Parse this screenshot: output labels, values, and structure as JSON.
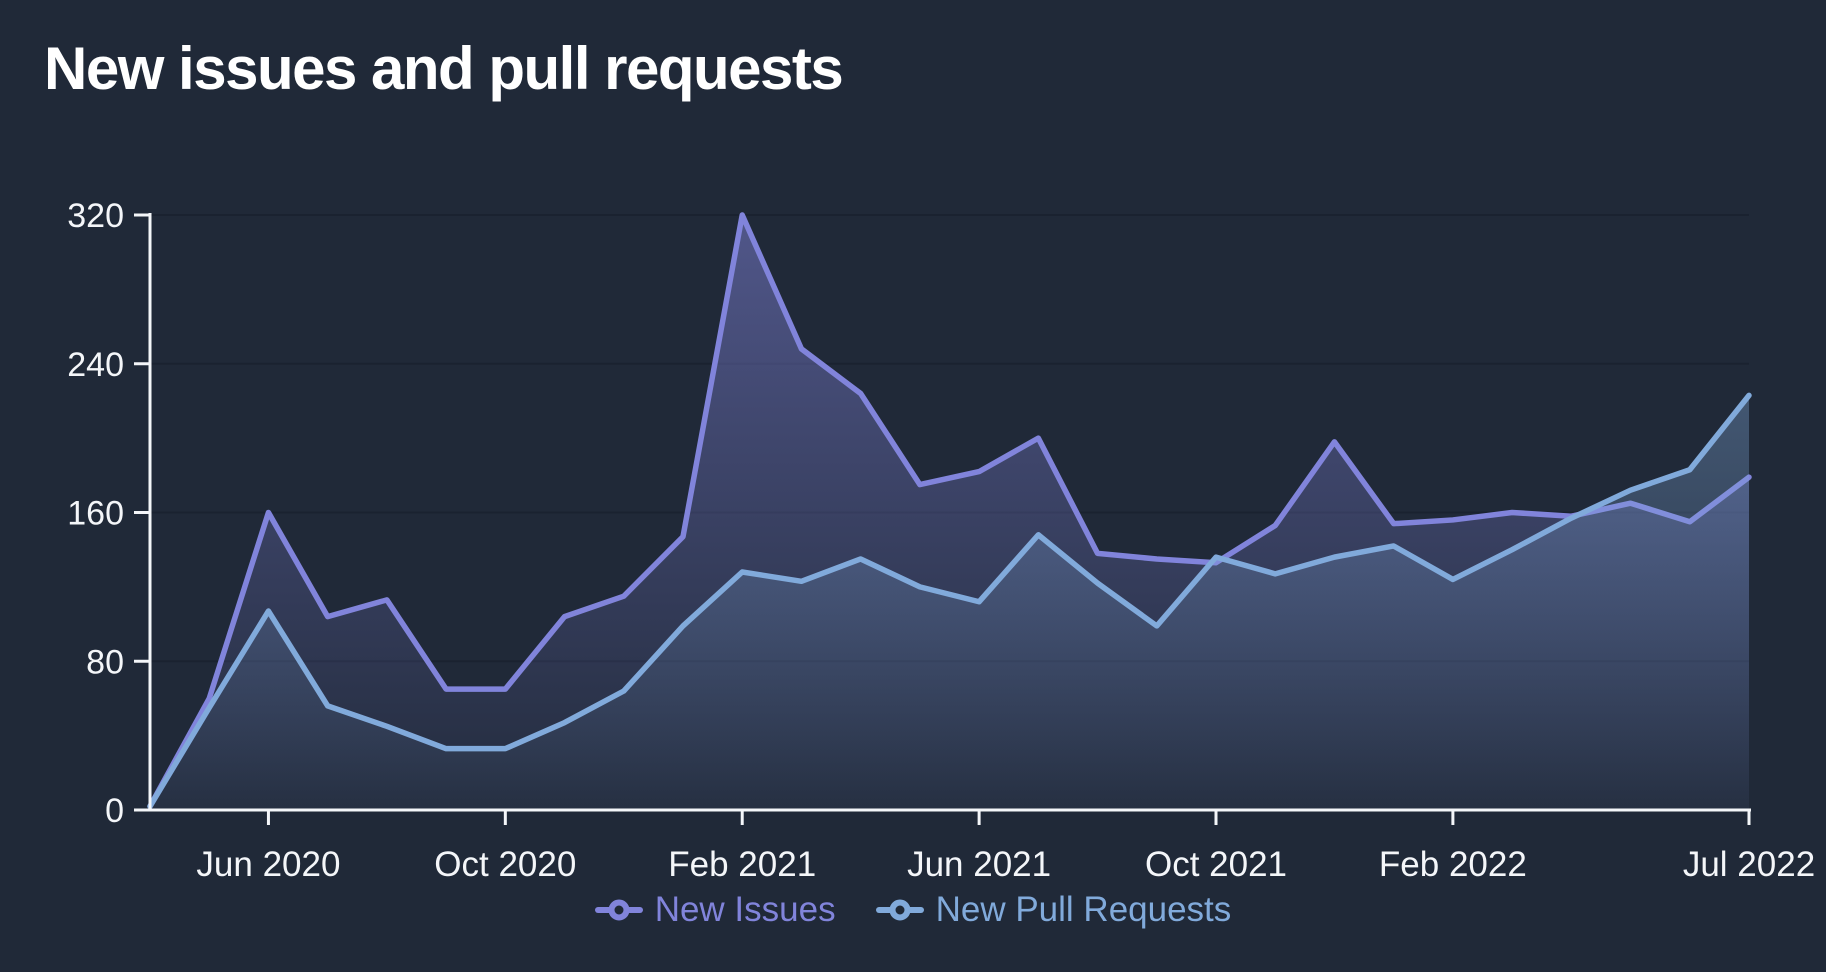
{
  "chart_data": {
    "type": "area",
    "title": "New issues and pull requests",
    "x": [
      "Apr 2020",
      "May 2020",
      "Jun 2020",
      "Jul 2020",
      "Aug 2020",
      "Sep 2020",
      "Oct 2020",
      "Nov 2020",
      "Dec 2020",
      "Jan 2021",
      "Feb 2021",
      "Mar 2021",
      "Apr 2021",
      "May 2021",
      "Jun 2021",
      "Jul 2021",
      "Aug 2021",
      "Sep 2021",
      "Oct 2021",
      "Nov 2021",
      "Dec 2021",
      "Jan 2022",
      "Feb 2022",
      "Mar 2022",
      "Apr 2022",
      "May 2022",
      "Jun 2022",
      "Jul 2022"
    ],
    "series": [
      {
        "name": "New Issues",
        "color": "#8184db",
        "values": [
          2,
          60,
          160,
          104,
          113,
          65,
          65,
          104,
          115,
          147,
          320,
          248,
          224,
          175,
          182,
          200,
          138,
          135,
          133,
          153,
          198,
          154,
          156,
          160,
          158,
          165,
          155,
          179
        ]
      },
      {
        "name": "New Pull Requests",
        "color": "#81aadb",
        "values": [
          2,
          55,
          107,
          56,
          45,
          33,
          33,
          47,
          64,
          99,
          128,
          123,
          135,
          120,
          112,
          148,
          122,
          99,
          136,
          127,
          136,
          142,
          124,
          140,
          157,
          172,
          183,
          223
        ]
      }
    ],
    "x_tick_labels": [
      "Jun 2020",
      "Oct 2020",
      "Feb 2021",
      "Jun 2021",
      "Oct 2021",
      "Feb 2022",
      "Jul 2022"
    ],
    "x_tick_indexes": [
      2,
      6,
      10,
      14,
      18,
      22,
      27
    ],
    "y_ticks": [
      "0",
      "80",
      "160",
      "240",
      "320"
    ],
    "y_tick_values": [
      0,
      80,
      160,
      240,
      320
    ],
    "ylim": [
      0,
      320
    ],
    "xlabel": "",
    "ylabel": "",
    "grid": "horizontal",
    "legend_position": "bottom",
    "colors": {
      "background": "#202938",
      "axis": "#f4f6f9",
      "grid": "#1a2230",
      "area_top_opacity": 0.5,
      "area_bottom_opacity": 0.03
    }
  }
}
